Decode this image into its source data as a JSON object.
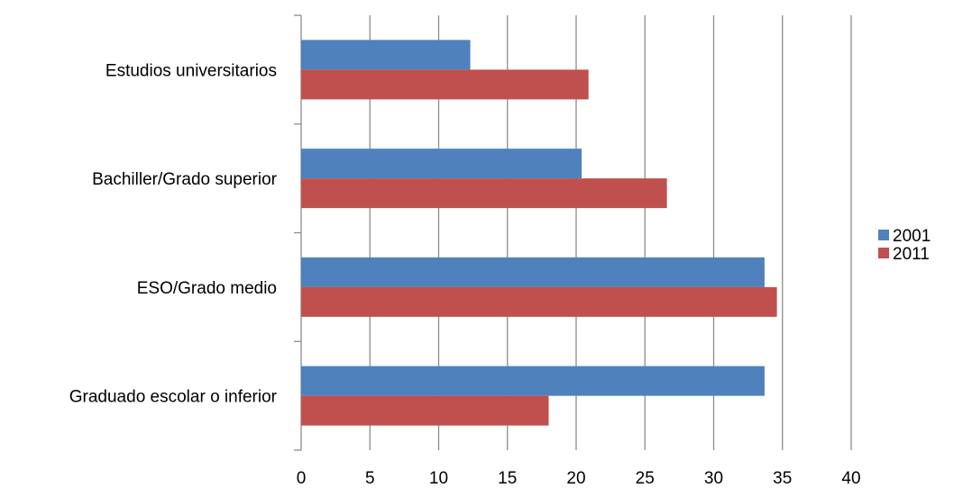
{
  "chart_data": {
    "type": "bar",
    "orientation": "horizontal",
    "categories": [
      "Estudios universitarios",
      "Bachiller/Grado superior",
      "ESO/Grado medio",
      "Graduado escolar o inferior"
    ],
    "series": [
      {
        "name": "2001",
        "color": "#4f81bd",
        "values": [
          12.3,
          20.4,
          33.7,
          33.7
        ]
      },
      {
        "name": "2011",
        "color": "#c0504d",
        "values": [
          20.9,
          26.6,
          34.6,
          18.0
        ]
      }
    ],
    "xlim": [
      0,
      40
    ],
    "x_ticks": [
      0,
      5,
      10,
      15,
      20,
      25,
      30,
      35,
      40
    ],
    "x_tick_labels": [
      "0",
      "5",
      "10",
      "15",
      "20",
      "25",
      "30",
      "35",
      "40"
    ],
    "grid": "vertical",
    "legend": "right",
    "title": "",
    "xlabel": "",
    "ylabel": ""
  }
}
